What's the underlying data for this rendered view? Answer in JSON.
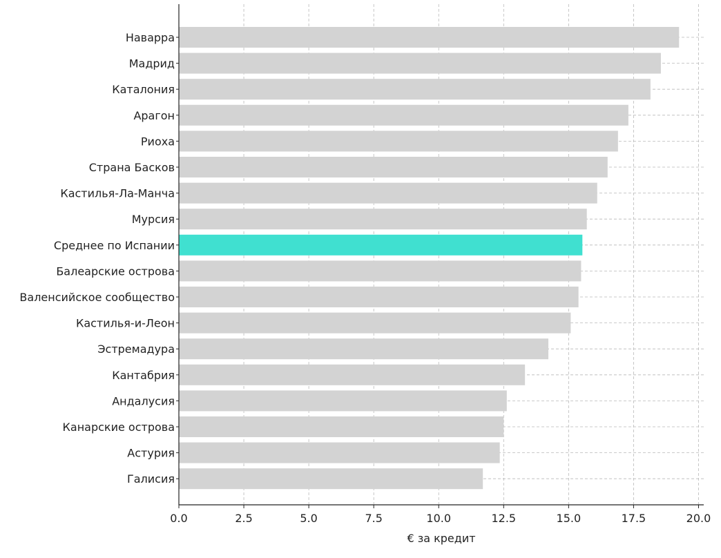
{
  "chart_data": {
    "type": "bar",
    "orientation": "horizontal",
    "title": "",
    "xlabel": "€ за кредит",
    "ylabel": "",
    "xlim": [
      0,
      20.2
    ],
    "xticks": [
      "0.0",
      "2.5",
      "5.0",
      "7.5",
      "10.0",
      "12.5",
      "15.0",
      "17.5",
      "20.0"
    ],
    "grid": true,
    "categories": [
      "Наварра",
      "Мадрид",
      "Каталония",
      "Арагон",
      "Риоха",
      "Страна Басков",
      "Кастилья-Ла-Манча",
      "Мурсия",
      "Среднее по Испании",
      "Балеарские острова",
      "Валенсийское сообщество",
      "Кастилья-и-Леон",
      "Эстремадура",
      "Кантабрия",
      "Андалусия",
      "Канарские острова",
      "Астурия",
      "Галисия"
    ],
    "values": [
      19.25,
      18.55,
      18.15,
      17.3,
      16.9,
      16.5,
      16.1,
      15.7,
      15.53,
      15.48,
      15.38,
      15.08,
      14.22,
      13.32,
      12.62,
      12.5,
      12.35,
      11.7
    ],
    "highlight_category": "Среднее по Испании",
    "colors": {
      "bar": "#d3d3d3",
      "highlight": "#40e0d0",
      "axis": "#222222",
      "grid": "#b8b8b8"
    }
  }
}
